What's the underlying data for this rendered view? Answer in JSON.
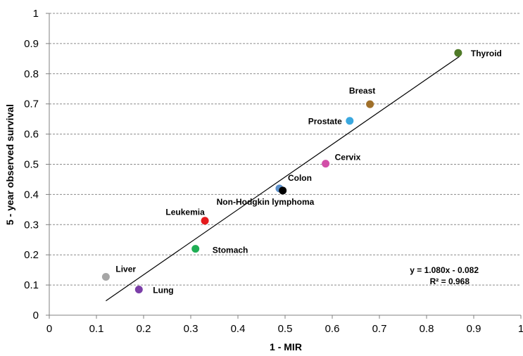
{
  "chart_data": {
    "type": "scatter",
    "title": "",
    "xlabel": "1 - MIR",
    "ylabel": "5 - year observed survival",
    "xlim": [
      0,
      1
    ],
    "ylim": [
      0,
      1
    ],
    "x_ticks": [
      "0",
      "0.1",
      "0.2",
      "0.3",
      "0.4",
      "0.5",
      "0.6",
      "0.7",
      "0.8",
      "0.9",
      "1"
    ],
    "y_ticks": [
      "0",
      "0.1",
      "0.2",
      "0.3",
      "0.4",
      "0.5",
      "0.6",
      "0.7",
      "0.8",
      "0.9",
      "1"
    ],
    "grid": "horizontal dashed",
    "legend": "none",
    "points": [
      {
        "label": "Thyroid",
        "x": 0.867,
        "y": 0.869,
        "color": "#4f7a28"
      },
      {
        "label": "Breast",
        "x": 0.68,
        "y": 0.699,
        "color": "#a0702a"
      },
      {
        "label": "Prostate",
        "x": 0.637,
        "y": 0.644,
        "color": "#3aa8df"
      },
      {
        "label": "Cervix",
        "x": 0.586,
        "y": 0.502,
        "color": "#d24fa8"
      },
      {
        "label": "Colon",
        "x": 0.488,
        "y": 0.42,
        "color": "#5b8fc9"
      },
      {
        "label": "Non-Hodgkin lymphoma",
        "x": 0.495,
        "y": 0.413,
        "color": "#000000"
      },
      {
        "label": "Leukemia",
        "x": 0.33,
        "y": 0.313,
        "color": "#e41a1c"
      },
      {
        "label": "Stomach",
        "x": 0.31,
        "y": 0.22,
        "color": "#1fae54"
      },
      {
        "label": "Liver",
        "x": 0.12,
        "y": 0.127,
        "color": "#a6a6a6"
      },
      {
        "label": "Lung",
        "x": 0.19,
        "y": 0.085,
        "color": "#7b3ea8"
      }
    ],
    "trendline": {
      "slope": 1.08,
      "intercept": -0.082,
      "x_range": [
        0.12,
        0.87
      ],
      "color": "#000000"
    },
    "annotations": {
      "equation": "y = 1.080x - 0.082",
      "r_squared": "R² = 0.968"
    }
  }
}
